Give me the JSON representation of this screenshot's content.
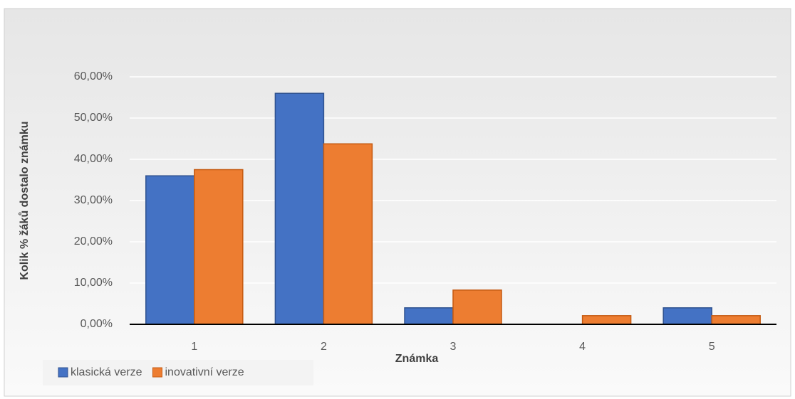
{
  "chart_data": {
    "type": "bar",
    "x_label": "Známka",
    "y_label": "Kolik % žáků dostalo známku",
    "categories": [
      "1",
      "2",
      "3",
      "4",
      "5"
    ],
    "series": [
      {
        "name": "klasická verze",
        "color": "#4472c4",
        "edge": "#2f528f",
        "values": [
          36,
          56,
          4,
          0,
          4
        ]
      },
      {
        "name": "inovativní verze",
        "color": "#ed7d31",
        "edge": "#c55a11",
        "values": [
          37.5,
          43.75,
          8.3,
          2.1,
          2.1
        ]
      }
    ],
    "ylim": [
      0,
      60
    ],
    "yticks": [
      {
        "value": 0,
        "label": "0,00%"
      },
      {
        "value": 10,
        "label": "10,00%"
      },
      {
        "value": 20,
        "label": "20,00%"
      },
      {
        "value": 30,
        "label": "30,00%"
      },
      {
        "value": 40,
        "label": "40,00%"
      },
      {
        "value": 50,
        "label": "50,00%"
      },
      {
        "value": 60,
        "label": "60,00%"
      }
    ],
    "grid": true,
    "legend": "bottom-left"
  }
}
